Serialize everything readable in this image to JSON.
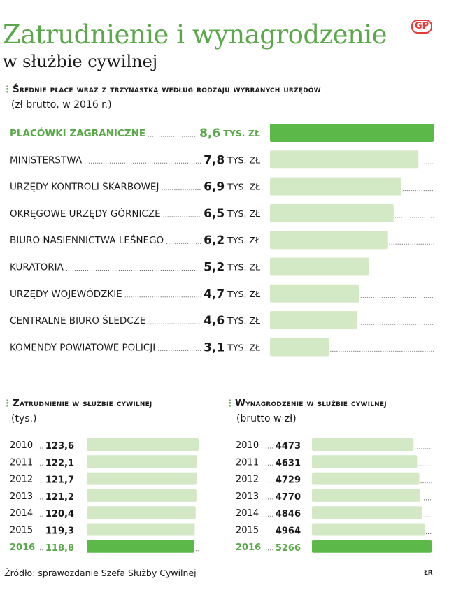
{
  "header": {
    "title": "Zatrudnienie i wynagrodzenie",
    "subtitle": "w służbie cywilnej",
    "logo": "GP"
  },
  "footer": {
    "source": "Źródło: sprawozdanie Szefa Służby Cywilnej",
    "author": "ŁR"
  },
  "colors": {
    "accent": "#5aa84a",
    "bar_light": "#d3e9c6",
    "bar_highlight": "#5db84a"
  },
  "chart_data": [
    {
      "type": "bar",
      "orientation": "horizontal",
      "title": "Średnie płace wraz z trzynastką według rodzaju wybranych urzędów",
      "subtitle": "(zł brutto, w 2016 r.)",
      "unit": "TYS. ZŁ",
      "categories": [
        "PLACÓWKI ZAGRANICZNE",
        "MINISTERSTWA",
        "URZĘDY KONTROLI SKARBOWEJ",
        "OKRĘGOWE URZĘDY GÓRNICZE",
        "BIURO NASIENNICTWA LEŚNEGO",
        "KURATORIA",
        "URZĘDY WOJEWÓDZKIE",
        "CENTRALNE BIURO ŚLEDCZE",
        "KOMENDY POWIATOWE POLICJI"
      ],
      "values": [
        8.6,
        7.8,
        6.9,
        6.5,
        6.2,
        5.2,
        4.7,
        4.6,
        3.1
      ],
      "labels": [
        "8,6",
        "7,8",
        "6,9",
        "6,5",
        "6,2",
        "5,2",
        "4,7",
        "4,6",
        "3,1"
      ],
      "highlight": 0,
      "xlim": [
        0,
        8.6
      ]
    },
    {
      "type": "bar",
      "orientation": "horizontal",
      "title": "Zatrudnienie w służbie cywilnej",
      "subtitle": "(tys.)",
      "categories": [
        "2010",
        "2011",
        "2012",
        "2013",
        "2014",
        "2015",
        "2016"
      ],
      "values": [
        123.6,
        122.1,
        121.7,
        121.2,
        120.4,
        119.3,
        118.8
      ],
      "labels": [
        "123,6",
        "122,1",
        "121,7",
        "121,2",
        "120,4",
        "119,3",
        "118,8"
      ],
      "highlight": 6,
      "xlim": [
        0,
        123.6
      ]
    },
    {
      "type": "bar",
      "orientation": "horizontal",
      "title": "Wynagrodzenie w służbie cywilnej",
      "subtitle": "(brutto w zł)",
      "categories": [
        "2010",
        "2011",
        "2012",
        "2013",
        "2014",
        "2015",
        "2016"
      ],
      "values": [
        4473,
        4631,
        4729,
        4770,
        4846,
        4964,
        5266
      ],
      "labels": [
        "4473",
        "4631",
        "4729",
        "4770",
        "4846",
        "4964",
        "5266"
      ],
      "highlight": 6,
      "xlim": [
        0,
        5266
      ]
    }
  ]
}
